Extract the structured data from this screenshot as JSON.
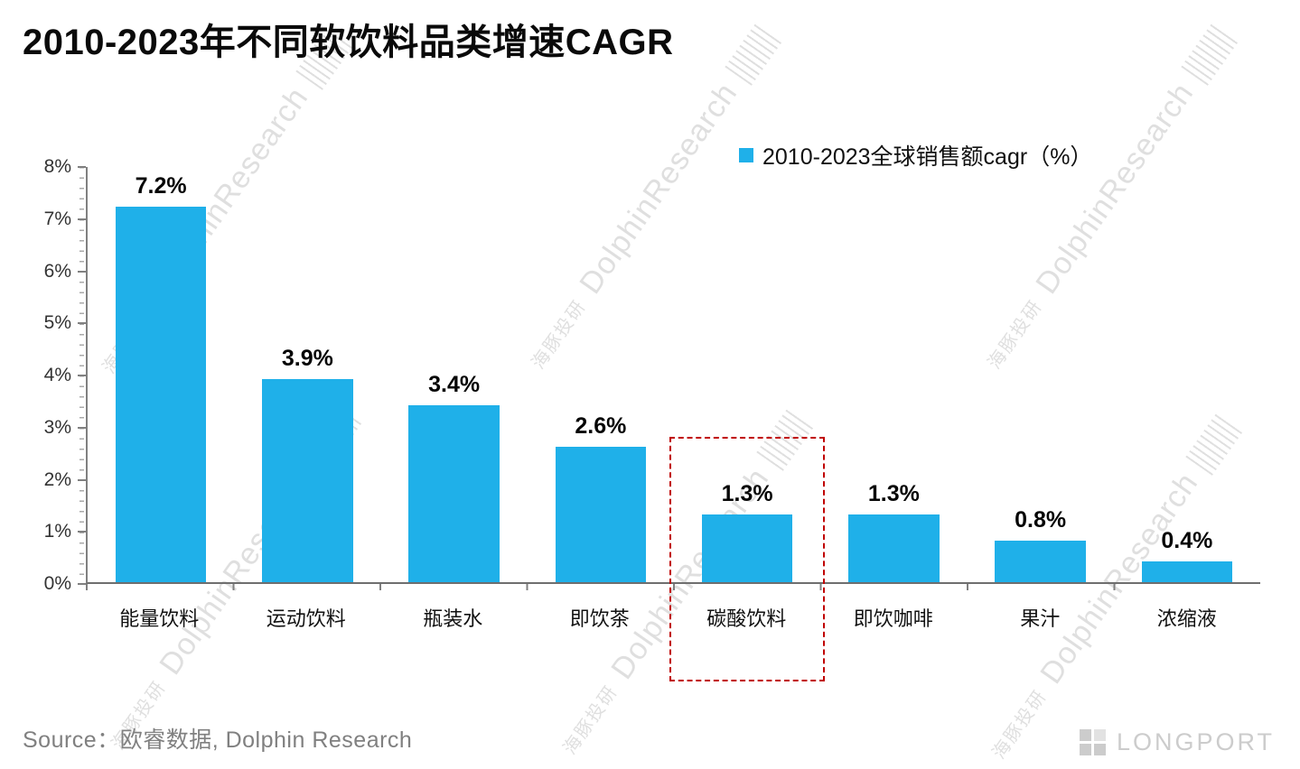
{
  "page": {
    "source": "Source：欧睿数据, Dolphin Research",
    "logo_text": "LONGPORT"
  },
  "watermarks": {
    "cn": "海豚投研",
    "en": "DolphinResearch"
  },
  "legend": {
    "label": "2010-2023全球销售额cagr（%）",
    "color": "#1FB0E9"
  },
  "chart_data": {
    "type": "bar",
    "title": "2010-2023年不同软饮料品类增速CAGR",
    "categories": [
      "能量饮料",
      "运动饮料",
      "瓶装水",
      "即饮茶",
      "碳酸饮料",
      "即饮咖啡",
      "果汁",
      "浓缩液"
    ],
    "values": [
      7.2,
      3.9,
      3.4,
      2.6,
      1.3,
      1.3,
      0.8,
      0.4
    ],
    "data_labels": [
      "7.2%",
      "3.9%",
      "3.4%",
      "2.6%",
      "1.3%",
      "1.3%",
      "0.8%",
      "0.4%"
    ],
    "xlabel": "",
    "ylabel": "",
    "ylim": [
      0,
      8
    ],
    "yticks": [
      "0%",
      "1%",
      "2%",
      "3%",
      "4%",
      "5%",
      "6%",
      "7%",
      "8%"
    ],
    "grid": false,
    "bar_color": "#1FB0E9",
    "legend": [
      "2010-2023全球销售额cagr（%）"
    ],
    "legend_position": "top-right",
    "highlight_category": "碳酸饮料",
    "highlight_index": 4,
    "highlight_color": "#C00000"
  }
}
